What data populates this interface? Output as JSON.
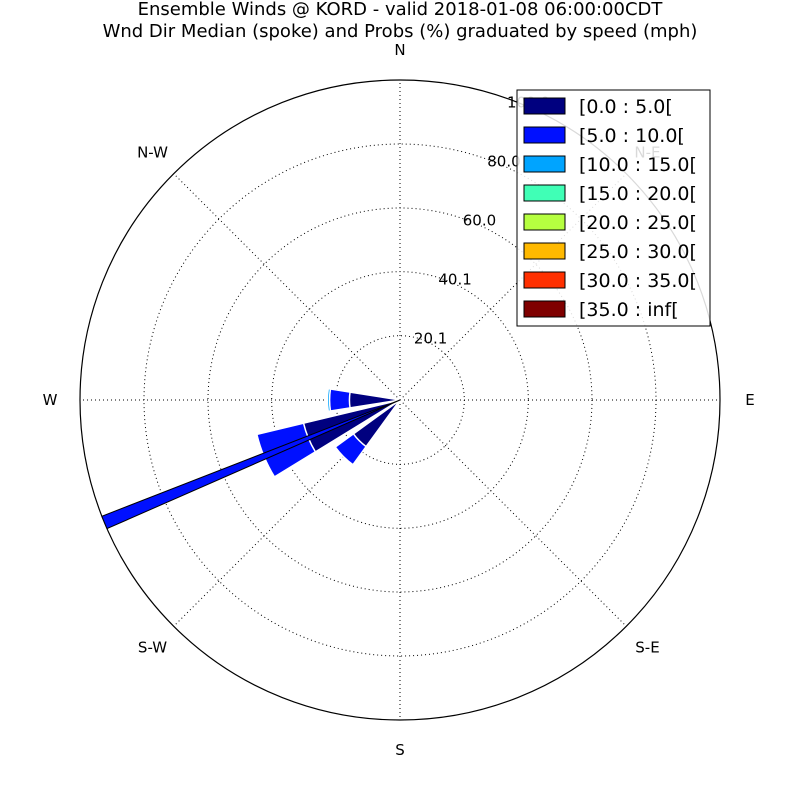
{
  "chart_data": {
    "type": "windrose",
    "title": "Ensemble Winds @ KORD - valid 2018-01-08 06:00:00CDT",
    "subtitle": "Wnd Dir Median (spoke) and Probs (%) graduated by speed (mph)",
    "directions": [
      "N",
      "N-E",
      "E",
      "S-E",
      "S",
      "S-W",
      "W",
      "N-W"
    ],
    "radial_ticks": [
      "20.1",
      "40.1",
      "60.0",
      "80.0",
      "100.0"
    ],
    "radial_max": 100,
    "grid": true,
    "legend_position": "top-right",
    "speed_bins": [
      {
        "label": "[0.0 : 5.0[",
        "color": "#00007f"
      },
      {
        "label": "[5.0 : 10.0[",
        "color": "#0010ff"
      },
      {
        "label": "[10.0 : 15.0[",
        "color": "#00a4ff"
      },
      {
        "label": "[15.0 : 20.0[",
        "color": "#40ffb6"
      },
      {
        "label": "[20.0 : 25.0[",
        "color": "#b6ff40"
      },
      {
        "label": "[25.0 : 30.0[",
        "color": "#ffb900"
      },
      {
        "label": "[30.0 : 35.0[",
        "color": "#ff3000"
      },
      {
        "label": "[35.0 : inf[",
        "color": "#7f0000"
      }
    ],
    "wedges": [
      {
        "direction_deg": 270,
        "cumulative": [
          0,
          15.8,
          22.0,
          22.7
        ]
      },
      {
        "direction_deg": 247.5,
        "cumulative": [
          0,
          31.0,
          46.0
        ]
      },
      {
        "direction_deg": 225,
        "cumulative": [
          0,
          18.0,
          25.0
        ]
      },
      {
        "direction_deg": 247.5,
        "cumulative": [
          0,
          0,
          0
        ]
      }
    ],
    "median_spoke": {
      "direction_deg": 247.5,
      "value": 100
    }
  }
}
